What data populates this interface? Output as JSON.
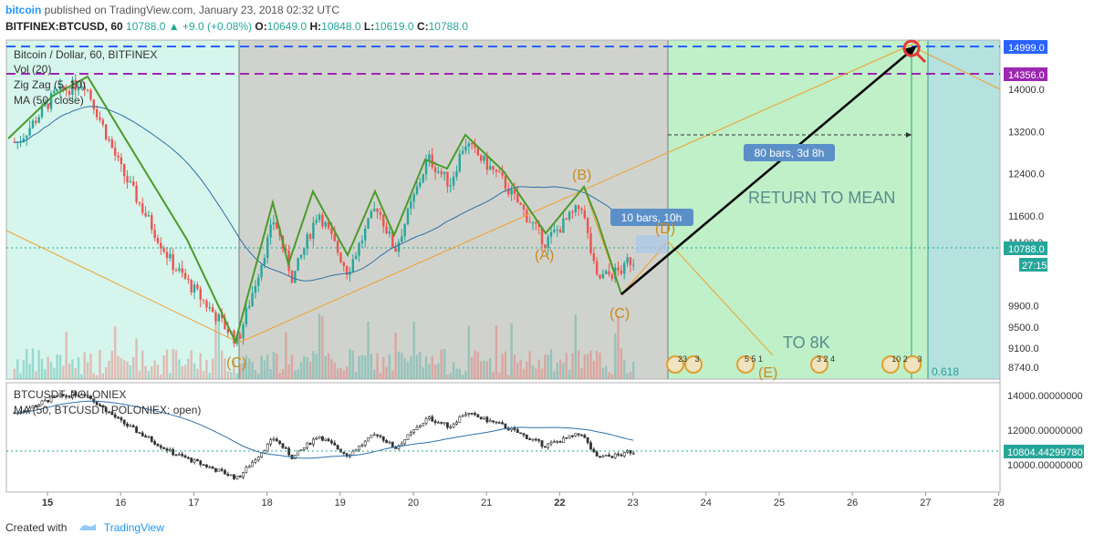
{
  "header": {
    "brand": "bitcoin",
    "published": "published on TradingView.com, January 23, 2018 02:32 UTC",
    "symbol": "BITFINEX:BTCUSD, 60",
    "last": "10788.0",
    "change_arrow": "▲",
    "change": "+9.0 (+0.08%)",
    "o_label": "O:",
    "o_value": "10649.0",
    "h_label": "H:",
    "h_value": "10848.0",
    "l_label": "L:",
    "l_value": "10619.0",
    "c_label": "C:",
    "c_value": "10788.0"
  },
  "legend": {
    "title": "Bitcoin / Dollar, 60, BITFINEX",
    "vol": "Vol (20)",
    "zigzag": "Zig Zag (5, 10)",
    "ma": "MA (50, close)"
  },
  "lower_legend": {
    "title": "BTCUSDT, POLONIEX",
    "ma": "MA (50, BTCUSDT, POLONIEX: open)"
  },
  "annotations": {
    "return_to_mean": "RETURN TO MEAN",
    "to_8k": "TO 8K",
    "bars_80": "80 bars, 3d 8h",
    "bars_10": "10 bars, 10h",
    "wave_a": "(A)",
    "wave_b": "(B)",
    "wave_c": "(C)",
    "wave_c0": "(C)",
    "wave_d": "(D)",
    "wave_e": "(E)",
    "fib": "0.618"
  },
  "price_badges": {
    "p14999": "14999.0",
    "p14356": "14356.0",
    "p10788": "10788.0",
    "timer": "27:15",
    "p10804": "10804.44299780"
  },
  "events": {
    "e1": "23",
    "e1b": "3",
    "e2": "5 5 1",
    "e3": "3 2 4",
    "e4": "10 2",
    "e4b": "3"
  },
  "footer": {
    "created": "Created with",
    "brand": "TradingView"
  },
  "colors": {
    "up": "#26a69a",
    "down": "#ef5350",
    "zigzag": "#4c9a2a",
    "ma": "#2f6fa8",
    "orange": "#f0a030",
    "wave_text": "#c98a1e",
    "blue_dash": "#2962ff",
    "purple_dash": "#9c27b0",
    "bg_mint": "#d6f5ec",
    "bg_gray": "#d0d3cd",
    "bg_green": "#bff0c8",
    "bg_teal": "#b5e2df"
  },
  "chart_data": {
    "type": "line",
    "x": [
      "15",
      "16",
      "17",
      "18",
      "19",
      "20",
      "21",
      "22",
      "23",
      "24",
      "25",
      "26",
      "27",
      "28"
    ],
    "y_ticks_main": [
      14000,
      13200,
      12400,
      11600,
      11100,
      9900,
      9500,
      9100,
      8740
    ],
    "y_ticks_lower": [
      14000,
      12000,
      10000
    ],
    "y_ticks_lower_labels": [
      "14000.00000000",
      "12000.00000000",
      "10000.00000000"
    ],
    "zigzag": [
      {
        "x": 14.6,
        "y": 13000
      },
      {
        "x": 15.1,
        "y": 13900
      },
      {
        "x": 15.5,
        "y": 14150
      },
      {
        "x": 16.0,
        "y": 12500
      },
      {
        "x": 16.7,
        "y": 10700
      },
      {
        "x": 17.6,
        "y": 9220
      },
      {
        "x": 18.1,
        "y": 11550
      },
      {
        "x": 18.35,
        "y": 10400
      },
      {
        "x": 18.7,
        "y": 11700
      },
      {
        "x": 19.1,
        "y": 10550
      },
      {
        "x": 19.5,
        "y": 11800
      },
      {
        "x": 19.75,
        "y": 10950
      },
      {
        "x": 20.2,
        "y": 12700
      },
      {
        "x": 20.5,
        "y": 12200
      },
      {
        "x": 20.7,
        "y": 13000
      },
      {
        "x": 21.2,
        "y": 12300
      },
      {
        "x": 21.8,
        "y": 11100
      },
      {
        "x": 22.3,
        "y": 11800
      },
      {
        "x": 22.5,
        "y": 10400
      },
      {
        "x": 22.9,
        "y": 10600
      }
    ],
    "forecast_d_to_e": [
      {
        "x": 23.5,
        "y": 10950
      },
      {
        "x": 24.9,
        "y": 9000
      }
    ],
    "arrow_target": [
      {
        "x": 22.85,
        "y": 10000
      },
      {
        "x": 26.9,
        "y": 14999
      }
    ],
    "levels": {
      "blue_dashed": 14999,
      "purple_dashed": 14356,
      "last": 10788
    }
  }
}
